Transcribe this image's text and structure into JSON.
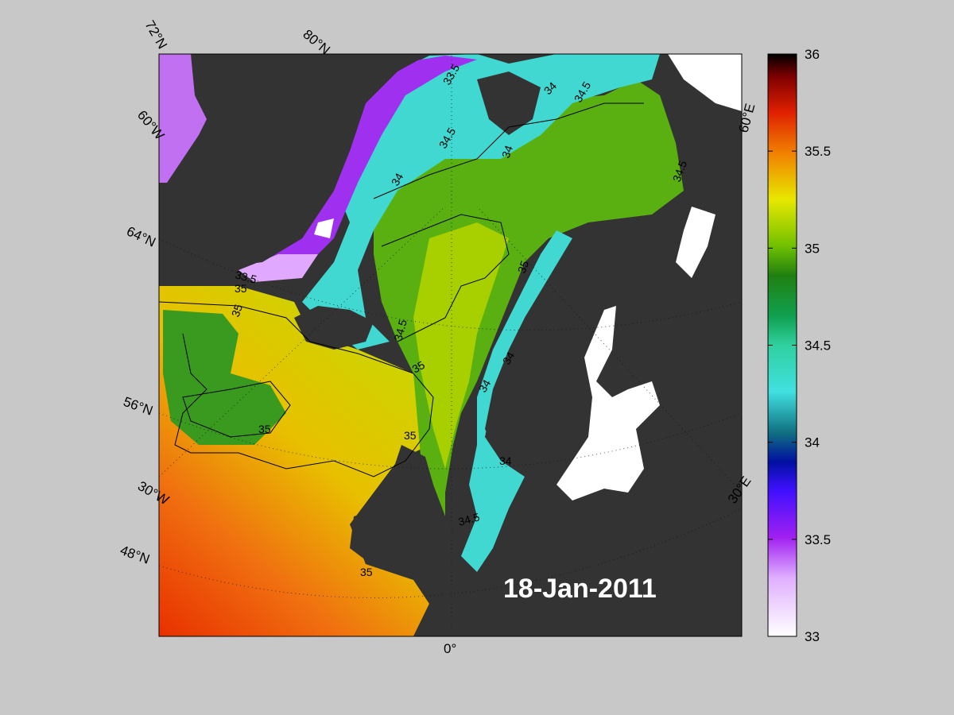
{
  "map": {
    "date_label": "18-Jan-2011",
    "lat_labels": [
      "72°N",
      "80°N",
      "64°N",
      "56°N",
      "48°N"
    ],
    "lon_labels": [
      "60°W",
      "30°W",
      "0°",
      "30°E",
      "60°E"
    ],
    "contour_labels": [
      "33.5",
      "34",
      "34.5",
      "35",
      "35.5"
    ]
  },
  "colorbar": {
    "min": 33,
    "max": 36,
    "ticks": [
      "33",
      "33.5",
      "34",
      "34.5",
      "35",
      "35.5",
      "36"
    ]
  },
  "colors": {
    "background": "#c8c8c8",
    "land": "#333333",
    "ice": "#ffffff"
  }
}
